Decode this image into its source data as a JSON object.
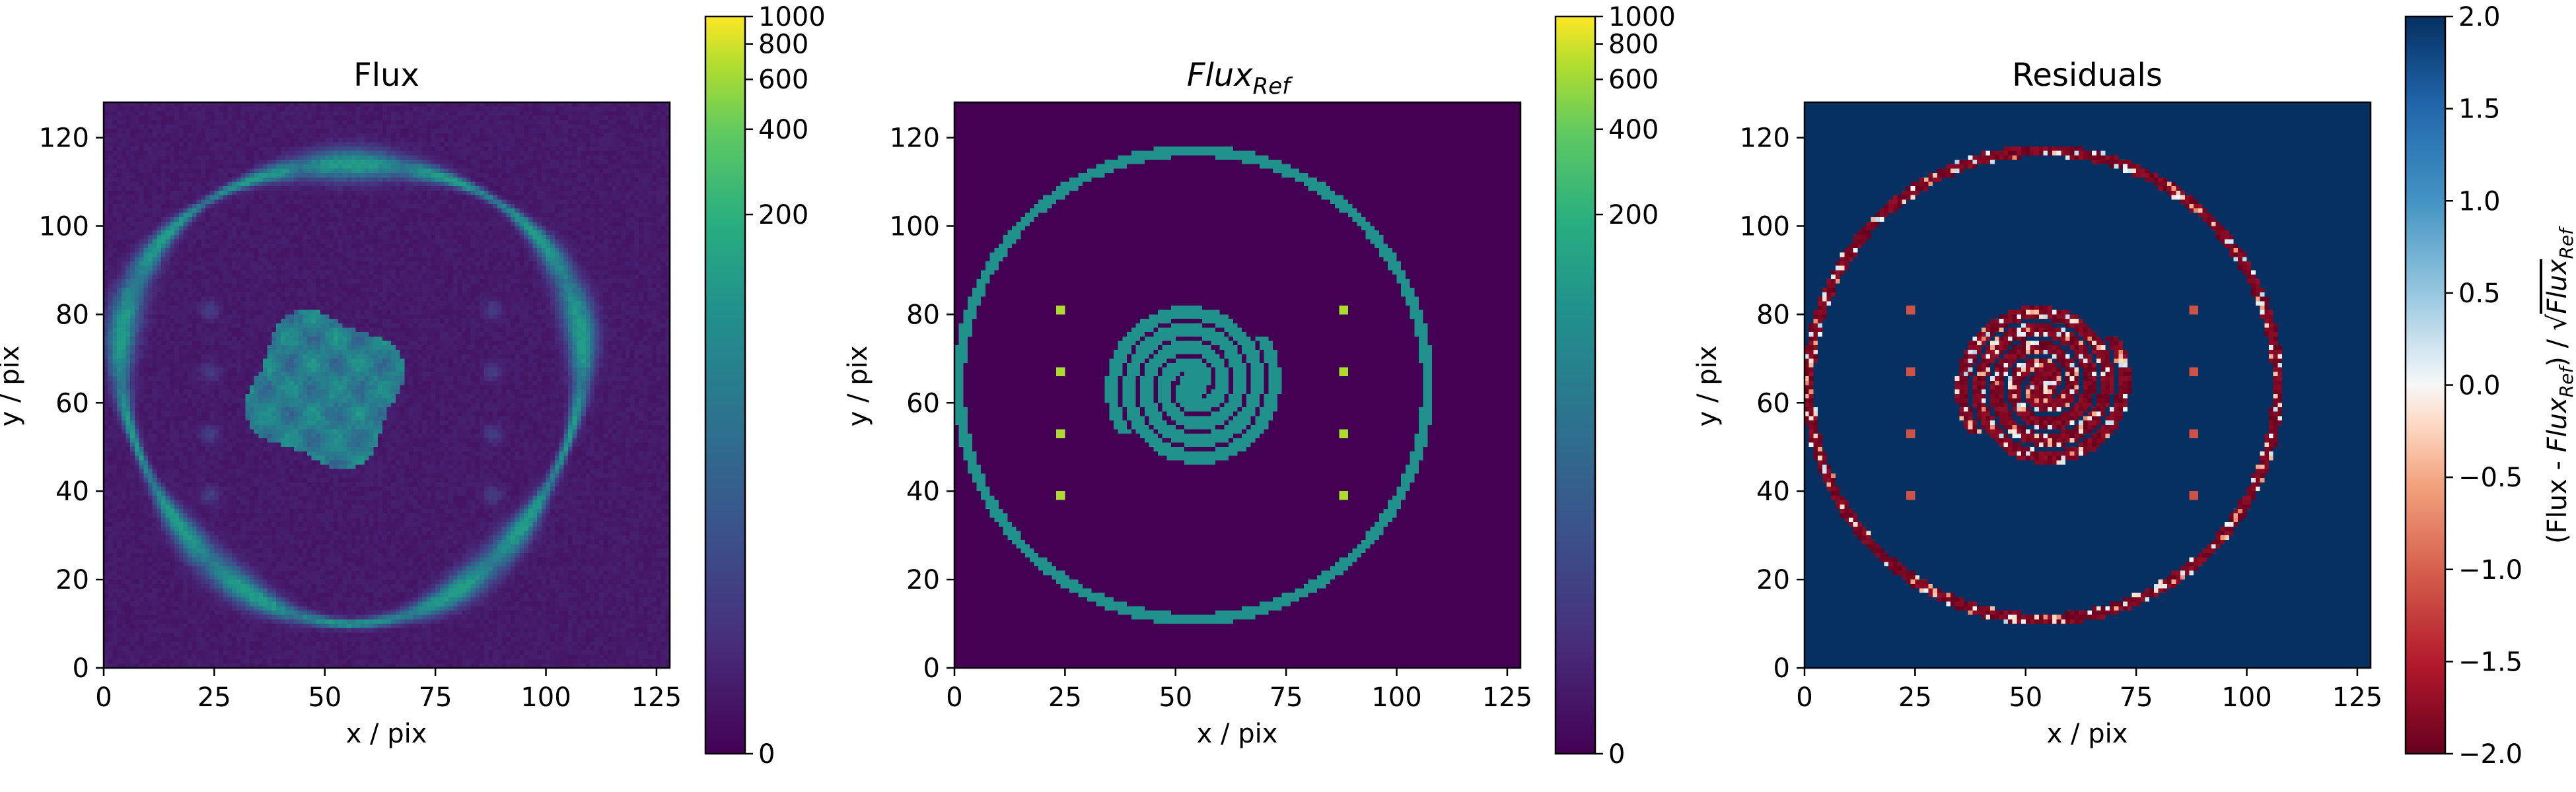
{
  "chart_data": [
    {
      "type": "heatmap",
      "panel": "flux",
      "title": "Flux",
      "xlabel": "x / pix",
      "ylabel": "y / pix",
      "xlim": [
        0,
        128
      ],
      "ylim": [
        0,
        128
      ],
      "xticks": [
        0,
        25,
        50,
        75,
        100,
        125
      ],
      "yticks": [
        0,
        20,
        40,
        60,
        80,
        100,
        120
      ],
      "colormap": "viridis",
      "colorbar": {
        "scale": "asinh",
        "range": [
          0,
          1000
        ],
        "ticks": [
          0,
          200,
          400,
          600,
          800,
          1000
        ],
        "label": ""
      },
      "features": {
        "ring_center": [
          56,
          64
        ],
        "ring_radius": 52,
        "central_blob_center": [
          50,
          63
        ],
        "central_blob_radius": 17,
        "peak_level": 0.55
      }
    },
    {
      "type": "heatmap",
      "panel": "flux_ref",
      "title": "Flux",
      "title_subscript": "Ref",
      "xlabel": "x / pix",
      "ylabel": "y / pix",
      "xlim": [
        0,
        128
      ],
      "ylim": [
        0,
        128
      ],
      "xticks": [
        0,
        25,
        50,
        75,
        100,
        125
      ],
      "yticks": [
        0,
        20,
        40,
        60,
        80,
        100,
        120
      ],
      "colormap": "viridis",
      "colorbar": {
        "scale": "asinh",
        "range": [
          0,
          1000
        ],
        "ticks": [
          0,
          200,
          400,
          600,
          800,
          1000
        ],
        "label": ""
      },
      "features": {
        "ring_center": [
          54,
          64
        ],
        "ring_radius": 53,
        "spiral_center": [
          54,
          64
        ],
        "spiral_arms": 2,
        "spiral_max_radius": 20,
        "point_sources": [
          [
            24,
            81
          ],
          [
            24,
            67
          ],
          [
            24,
            53
          ],
          [
            24,
            39
          ],
          [
            88,
            81
          ],
          [
            88,
            67
          ],
          [
            88,
            53
          ],
          [
            88,
            39
          ]
        ],
        "level": 0.5
      }
    },
    {
      "type": "heatmap",
      "panel": "residuals",
      "title": "Residuals",
      "xlabel": "x / pix",
      "ylabel": "y / pix",
      "xlim": [
        0,
        128
      ],
      "ylim": [
        0,
        128
      ],
      "xticks": [
        0,
        25,
        50,
        75,
        100,
        125
      ],
      "yticks": [
        0,
        20,
        40,
        60,
        80,
        100,
        120
      ],
      "colormap": "RdBu",
      "colorbar": {
        "scale": "linear",
        "range": [
          -2.0,
          2.0
        ],
        "ticks": [
          -2.0,
          -1.5,
          -1.0,
          -0.5,
          0.0,
          0.5,
          1.0,
          1.5,
          2.0
        ],
        "tick_labels": [
          "−2.0",
          "−1.5",
          "−1.0",
          "−0.5",
          "0.0",
          "0.5",
          "1.0",
          "1.5",
          "2.0"
        ],
        "label": "(Flux - Flux_Ref) / √Flux_Ref",
        "label_parts": {
          "pre": "(Flux - ",
          "sym": "Flux",
          "sub": "Ref",
          "mid": ") / √",
          "sym2": "Flux",
          "sub2": "Ref"
        }
      },
      "features": {
        "background_level": 2.0,
        "structure_level": -2.0,
        "point_sources": [
          [
            24,
            81
          ],
          [
            24,
            67
          ],
          [
            24,
            53
          ],
          [
            24,
            39
          ],
          [
            88,
            81
          ],
          [
            88,
            67
          ],
          [
            88,
            53
          ],
          [
            88,
            39
          ]
        ]
      }
    }
  ]
}
